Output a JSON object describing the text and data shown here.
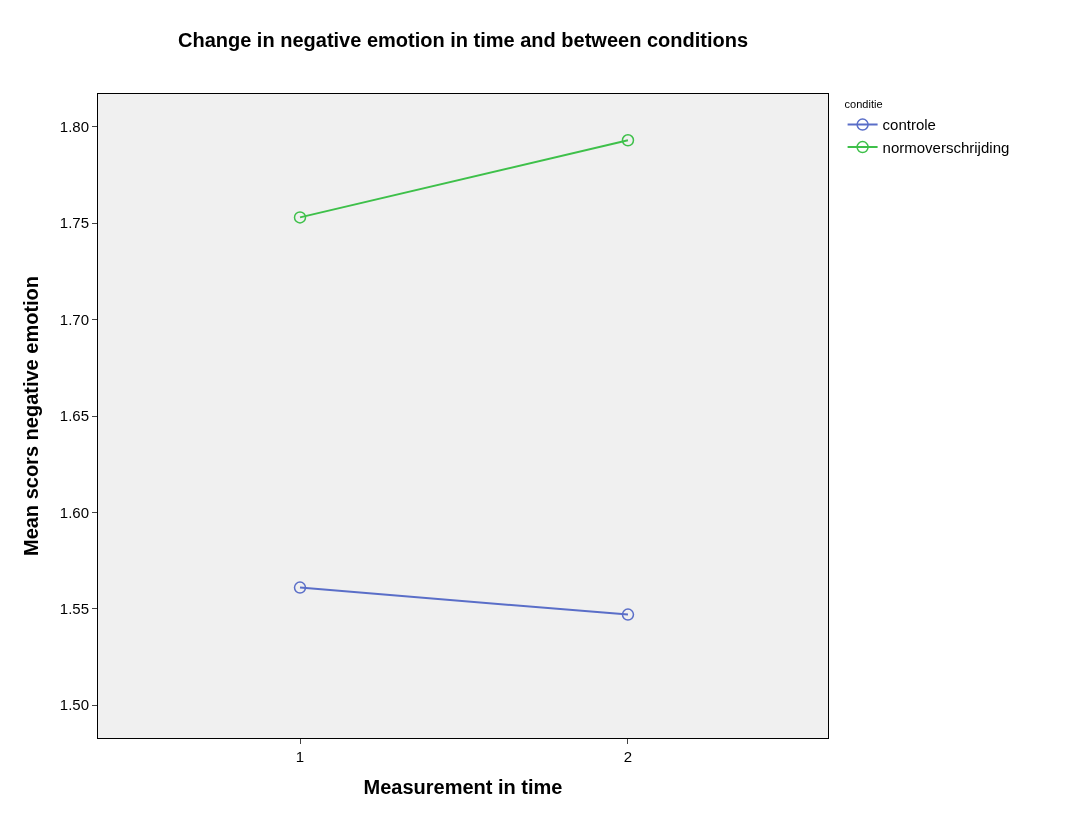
{
  "chart_data": {
    "type": "line",
    "title": "Change in negative emotion in time and between conditions",
    "xlabel": "Measurement in time",
    "ylabel": "Mean scors negative emotion",
    "legend_title": "conditie",
    "categories": [
      "1",
      "2"
    ],
    "series": [
      {
        "name": "controle",
        "color": "#5a6ec8",
        "values": [
          1.561,
          1.547
        ]
      },
      {
        "name": "normoverschrijding",
        "color": "#3ec04a",
        "values": [
          1.753,
          1.793
        ]
      }
    ],
    "ylim": [
      1.483,
      1.817
    ],
    "yticks": [
      {
        "value": 1.5,
        "label": "1.50"
      },
      {
        "value": 1.55,
        "label": "1.55"
      },
      {
        "value": 1.6,
        "label": "1.60"
      },
      {
        "value": 1.65,
        "label": "1.65"
      },
      {
        "value": 1.7,
        "label": "1.70"
      },
      {
        "value": 1.75,
        "label": "1.75"
      },
      {
        "value": 1.8,
        "label": "1.80"
      }
    ],
    "grid": false,
    "legend": "top right",
    "marker": "circle",
    "line_style": "solid"
  }
}
